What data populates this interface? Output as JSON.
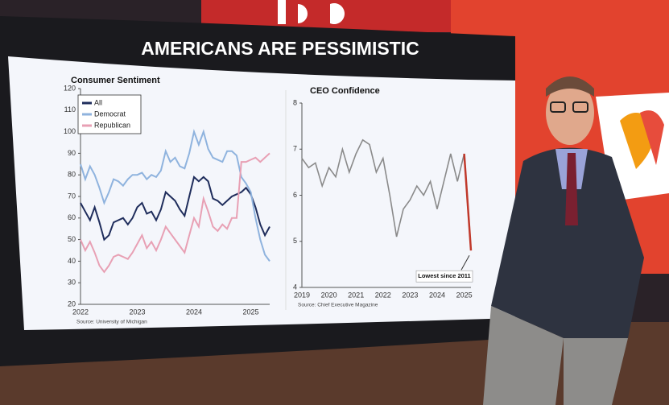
{
  "headline": "AMERICANS ARE PESSIMISTIC",
  "chart_data": [
    {
      "type": "line",
      "title": "Consumer Sentiment",
      "categories": [
        "2022",
        null,
        null,
        null,
        null,
        null,
        null,
        null,
        null,
        null,
        null,
        null,
        "2023",
        null,
        null,
        null,
        null,
        null,
        null,
        null,
        null,
        null,
        null,
        null,
        "2024",
        null,
        null,
        null,
        null,
        null,
        null,
        null,
        null,
        null,
        null,
        null,
        "2025",
        null,
        null,
        null,
        null
      ],
      "series": [
        {
          "name": "All",
          "color": "#1f2d5c",
          "values": [
            67,
            63,
            59,
            65,
            58,
            50,
            52,
            58,
            59,
            60,
            57,
            60,
            65,
            67,
            62,
            63,
            59,
            64,
            72,
            70,
            68,
            64,
            61,
            70,
            79,
            77,
            79,
            77,
            69,
            68,
            66,
            68,
            70,
            71,
            72,
            74,
            71,
            65,
            57,
            52,
            56
          ]
        },
        {
          "name": "Democrat",
          "color": "#8fb3de",
          "values": [
            85,
            78,
            84,
            80,
            74,
            67,
            72,
            78,
            77,
            75,
            78,
            80,
            80,
            81,
            78,
            80,
            79,
            82,
            91,
            86,
            88,
            84,
            83,
            90,
            100,
            94,
            100,
            92,
            88,
            87,
            86,
            91,
            91,
            89,
            79,
            76,
            72,
            60,
            50,
            43,
            40
          ]
        },
        {
          "name": "Republican",
          "color": "#e8a0b4",
          "values": [
            50,
            45,
            49,
            44,
            38,
            35,
            38,
            42,
            43,
            42,
            41,
            44,
            48,
            52,
            46,
            49,
            45,
            50,
            56,
            53,
            50,
            47,
            44,
            52,
            60,
            56,
            69,
            63,
            56,
            54,
            57,
            55,
            60,
            60,
            86,
            86,
            87,
            88,
            86,
            88,
            90
          ]
        }
      ],
      "ylim": [
        20,
        120
      ],
      "yticks": [
        20,
        30,
        40,
        50,
        60,
        70,
        80,
        90,
        100,
        110,
        120
      ],
      "source": "Source: University of Michigan"
    },
    {
      "type": "line",
      "title": "CEO Confidence",
      "categories": [
        "2019",
        null,
        null,
        null,
        "2020",
        null,
        null,
        null,
        "2021",
        null,
        null,
        null,
        "2022",
        null,
        null,
        null,
        "2023",
        null,
        null,
        null,
        "2024",
        null,
        null,
        null,
        "2025",
        null
      ],
      "values": [
        6.8,
        6.6,
        6.7,
        6.2,
        6.6,
        6.4,
        7.0,
        6.5,
        6.9,
        7.2,
        7.1,
        6.5,
        6.8,
        6.0,
        5.1,
        5.7,
        5.9,
        6.2,
        6.0,
        6.3,
        5.7,
        6.3,
        6.9,
        6.3,
        6.9,
        4.8
      ],
      "color": "#8a8a8a",
      "highlight_color": "#c0392b",
      "ylim": [
        4,
        8
      ],
      "yticks": [
        4,
        5,
        6,
        7,
        8
      ],
      "annotation": "Lowest since 2011",
      "source": "Source: Chief Executive Magazine"
    }
  ]
}
